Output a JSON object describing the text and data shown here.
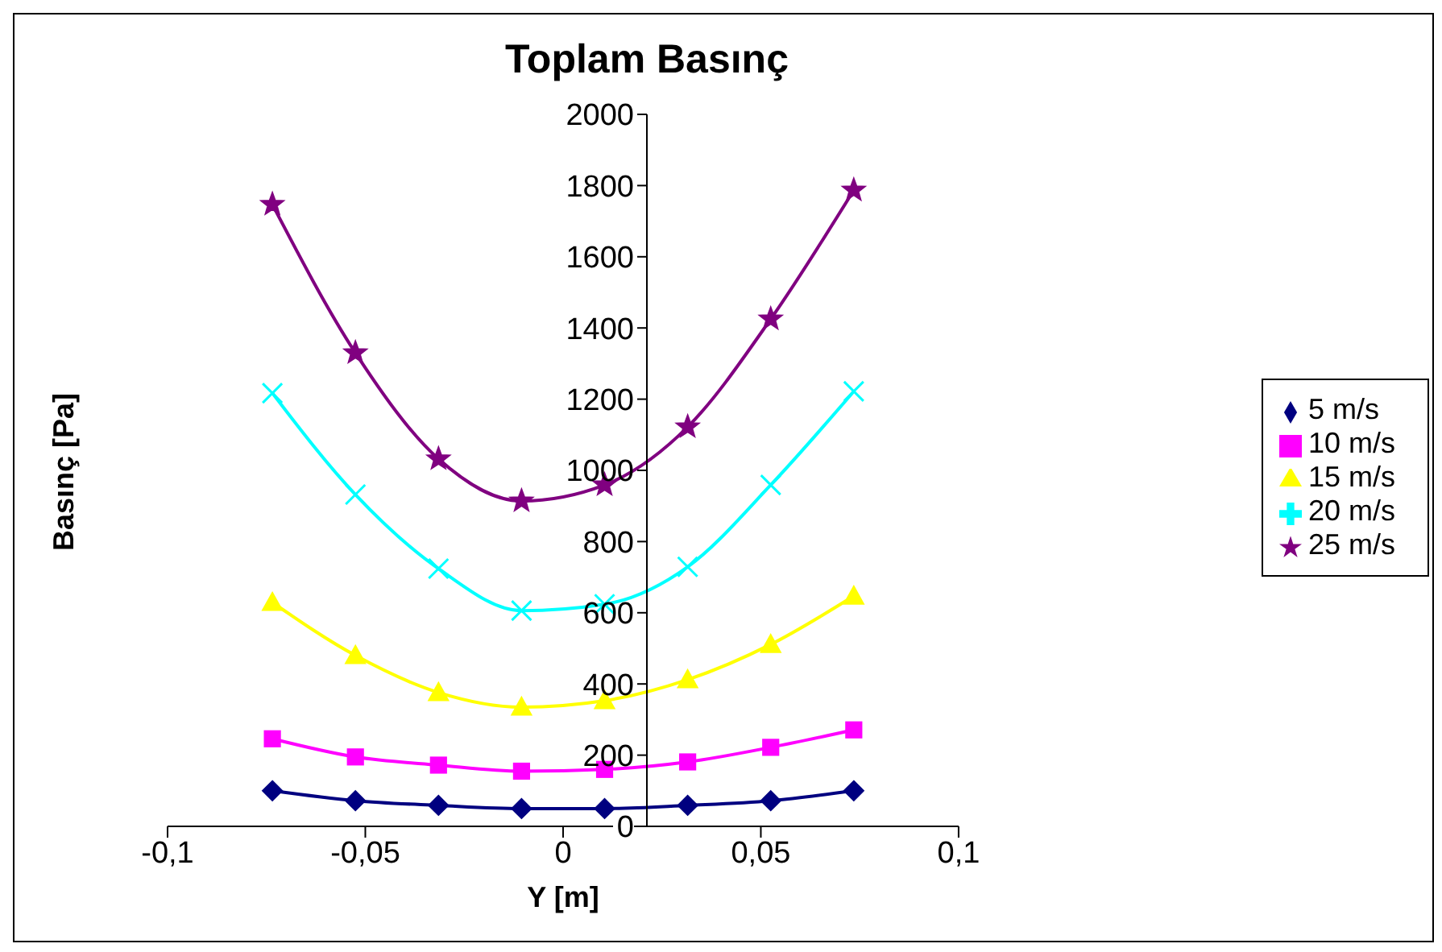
{
  "chart_data": {
    "type": "line",
    "title": "Toplam Basınç",
    "xlabel": "Y [m]",
    "ylabel": "Basınç [Pa]",
    "x": [
      -0.0735,
      -0.0525,
      -0.0315,
      -0.0105,
      0.0105,
      0.0315,
      0.0525,
      0.0735
    ],
    "series": [
      {
        "name": "5 m/s",
        "color": "#000080",
        "marker": "diamond",
        "values": [
          100,
          72,
          59,
          50,
          50,
          59,
          72,
          100
        ]
      },
      {
        "name": "10 m/s",
        "color": "#ff00ff",
        "marker": "square",
        "values": [
          246,
          195,
          172,
          155,
          160,
          181,
          222,
          271
        ]
      },
      {
        "name": "15 m/s",
        "color": "#ffff00",
        "marker": "triangle",
        "values": [
          629,
          480,
          376,
          335,
          353,
          412,
          511,
          647
        ]
      },
      {
        "name": "20 m/s",
        "color": "#00ffff",
        "marker": "cross",
        "values": [
          1217,
          932,
          724,
          606,
          624,
          729,
          959,
          1222
        ]
      },
      {
        "name": "25 m/s",
        "color": "#800080",
        "marker": "star",
        "values": [
          1747,
          1330,
          1032,
          914,
          959,
          1122,
          1425,
          1787
        ]
      }
    ],
    "xlim": [
      -0.1,
      0.1
    ],
    "xticks": [
      {
        "value": -0.1,
        "label": "-0,1"
      },
      {
        "value": -0.05,
        "label": "-0,05"
      },
      {
        "value": 0,
        "label": "0"
      },
      {
        "value": 0.05,
        "label": "0,05"
      },
      {
        "value": 0.1,
        "label": "0,1"
      }
    ],
    "ylim": [
      0,
      2000
    ],
    "yticks": [
      0,
      200,
      400,
      600,
      800,
      1000,
      1200,
      1400,
      1600,
      1800,
      2000
    ],
    "grid": false,
    "legend": "right",
    "line_style": "solid"
  }
}
